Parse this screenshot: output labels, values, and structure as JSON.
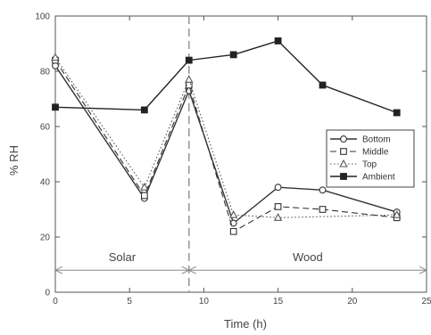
{
  "chart_data": {
    "type": "line",
    "xlabel": "Time (h)",
    "ylabel": "% RH",
    "xlim": [
      0,
      25
    ],
    "ylim": [
      0,
      100
    ],
    "x_ticks": [
      0,
      5,
      10,
      15,
      20,
      25
    ],
    "x_tick_labels": [
      "0",
      "5",
      "10",
      "15",
      "20",
      "25"
    ],
    "y_ticks": [
      0,
      20,
      40,
      60,
      80,
      100
    ],
    "y_tick_labels": [
      "0",
      "20",
      "40",
      "60",
      "80",
      "100"
    ],
    "grid": false,
    "legend_position": "right",
    "divider_x": 9,
    "regions": [
      {
        "label": "Solar",
        "x_start": 0,
        "x_end": 9,
        "arrow_y": 8
      },
      {
        "label": "Wood",
        "x_start": 9,
        "x_end": 25,
        "arrow_y": 8
      }
    ],
    "series": [
      {
        "name": "Bottom",
        "marker": "circle-open",
        "line_style": "solid",
        "color": "#333333",
        "points": [
          [
            0,
            82
          ],
          [
            6,
            34
          ],
          [
            9,
            73
          ],
          [
            12,
            25
          ],
          [
            15,
            38
          ],
          [
            18,
            37
          ],
          [
            23,
            29
          ]
        ]
      },
      {
        "name": "Middle",
        "marker": "square-open",
        "line_style": "dashed",
        "color": "#333333",
        "points": [
          [
            0,
            84
          ],
          [
            6,
            35
          ],
          [
            9,
            75
          ],
          [
            12,
            22
          ],
          [
            15,
            31
          ],
          [
            18,
            30
          ],
          [
            23,
            27
          ]
        ]
      },
      {
        "name": "Top",
        "marker": "triangle-open",
        "line_style": "dotted",
        "color": "#555555",
        "points": [
          [
            0,
            85
          ],
          [
            6,
            38
          ],
          [
            9,
            77
          ],
          [
            12,
            28
          ],
          [
            15,
            27
          ],
          [
            23,
            28
          ]
        ]
      },
      {
        "name": "Ambient",
        "marker": "square-filled",
        "line_style": "solid",
        "color": "#222222",
        "points": [
          [
            0,
            67
          ],
          [
            6,
            66
          ],
          [
            9,
            84
          ],
          [
            12,
            86
          ],
          [
            15,
            91
          ],
          [
            18,
            75
          ],
          [
            23,
            65
          ]
        ]
      }
    ]
  }
}
